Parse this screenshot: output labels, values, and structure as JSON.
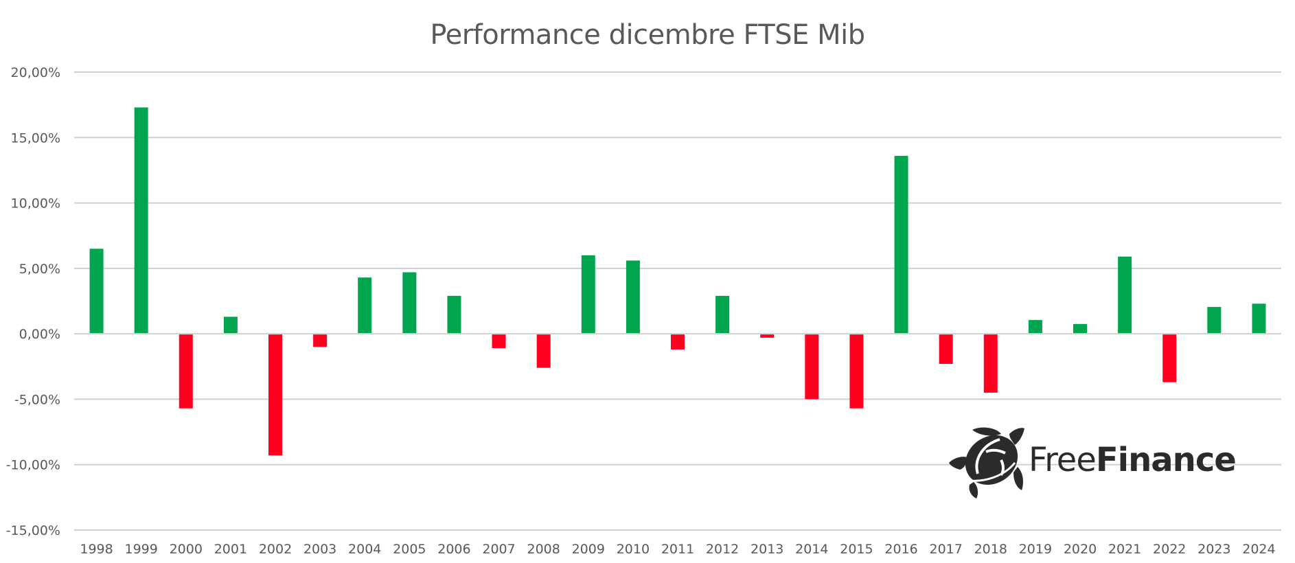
{
  "chart_data": {
    "type": "bar",
    "title": "Performance dicembre FTSE Mib",
    "xlabel": "",
    "ylabel": "",
    "ylim": [
      -15,
      20
    ],
    "yticks": [
      20,
      15,
      10,
      5,
      0,
      -5,
      -10,
      -15
    ],
    "ytick_labels": [
      "20,00%",
      "15,00%",
      "10,00%",
      "5,00%",
      "0,00%",
      "-5,00%",
      "-10,00%",
      "-15,00%"
    ],
    "grid": true,
    "legend": "none",
    "categories": [
      "1998",
      "1999",
      "2000",
      "2001",
      "2002",
      "2003",
      "2004",
      "2005",
      "2006",
      "2007",
      "2008",
      "2009",
      "2010",
      "2011",
      "2012",
      "2013",
      "2014",
      "2015",
      "2016",
      "2017",
      "2018",
      "2019",
      "2020",
      "2021",
      "2022",
      "2023",
      "2024"
    ],
    "series": [
      {
        "name": "Performance dicembre",
        "unit": "%",
        "values": [
          6.5,
          17.3,
          -5.7,
          1.3,
          -9.3,
          -1.0,
          4.3,
          4.7,
          2.9,
          -1.1,
          -2.6,
          6.0,
          5.6,
          -1.2,
          2.9,
          -0.3,
          -5.0,
          -5.7,
          13.6,
          -2.3,
          -4.5,
          1.05,
          0.75,
          5.9,
          -3.7,
          2.05,
          2.3
        ]
      }
    ],
    "colors": {
      "positive": "#00a64f",
      "negative": "#ff0020",
      "grid": "#d0d0d0",
      "text": "#595959"
    }
  },
  "logo": {
    "text_light": "Free",
    "text_bold": "Finance",
    "icon": "turtle-icon"
  }
}
